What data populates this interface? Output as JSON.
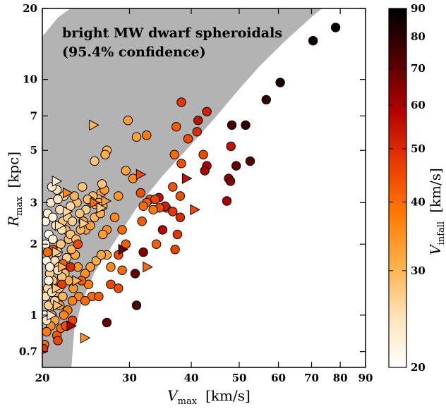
{
  "chart_data": {
    "type": "scatter",
    "title": "",
    "annotation_lines": [
      "bright MW dwarf spheroidals",
      "(95.4% confidence)"
    ],
    "xlabel": {
      "symbol": "V",
      "sub": "max",
      "unit": "[km/s]"
    },
    "ylabel": {
      "symbol": "R",
      "sub": "max",
      "unit": "[kpc]"
    },
    "colorbar_label": {
      "symbol": "V",
      "sub": "infall",
      "unit": "[km/s]"
    },
    "x_scale": "log",
    "y_scale": "log",
    "xlim": [
      20,
      90
    ],
    "ylim": [
      0.6,
      20
    ],
    "x_ticks": [
      20,
      30,
      40,
      50,
      60,
      70,
      80,
      90
    ],
    "y_ticks": [
      0.7,
      1,
      2,
      3,
      5,
      7,
      10,
      20
    ],
    "colorbar_range": [
      20,
      90
    ],
    "colorbar_ticks": [
      20,
      30,
      40,
      50,
      60,
      70,
      80,
      90
    ],
    "colormap": [
      "#ffffff",
      "#ffe3b8",
      "#ffb04a",
      "#ff7a00",
      "#ea3a00",
      "#b30000",
      "#520000",
      "#000000"
    ],
    "shaded_region": {
      "label": "bright MW dwarf spheroidals (95.4% confidence)",
      "color": "#b3b3b3",
      "upper_boundary": [
        [
          20,
          15.2
        ],
        [
          20.5,
          16.2
        ],
        [
          21.5,
          18.3
        ],
        [
          22.8,
          20
        ]
      ],
      "lower_boundary": [
        [
          22.9,
          0.6
        ],
        [
          23.2,
          0.86
        ],
        [
          24.0,
          1.12
        ],
        [
          25.5,
          1.52
        ],
        [
          28.0,
          2.05
        ],
        [
          31.0,
          2.85
        ],
        [
          35.0,
          3.9
        ],
        [
          40.0,
          5.3
        ],
        [
          45.0,
          7.0
        ],
        [
          50.0,
          9.1
        ],
        [
          55.0,
          11.4
        ],
        [
          62.0,
          14.6
        ],
        [
          70.0,
          18.4
        ],
        [
          73.5,
          20
        ]
      ]
    },
    "series": [
      {
        "marker": "circle",
        "points": [
          [
            78.3,
            16.6,
            90
          ],
          [
            70.5,
            14.6,
            88
          ],
          [
            60.5,
            9.7,
            85
          ],
          [
            56.7,
            8.2,
            80
          ],
          [
            51.5,
            6.4,
            78
          ],
          [
            48.3,
            6.4,
            75
          ],
          [
            48.1,
            5.2,
            55
          ],
          [
            52.6,
            4.5,
            72
          ],
          [
            49.3,
            4.3,
            70
          ],
          [
            47.6,
            3.8,
            62
          ],
          [
            48.0,
            3.7,
            65
          ],
          [
            47.2,
            3.05,
            60
          ],
          [
            43.0,
            4.3,
            58
          ],
          [
            42.6,
            4.1,
            60
          ],
          [
            42.3,
            4.8,
            45
          ],
          [
            43.0,
            7.3,
            52
          ],
          [
            41.3,
            6.7,
            55
          ],
          [
            41.1,
            6.0,
            50
          ],
          [
            38.2,
            8.0,
            48
          ],
          [
            37.3,
            6.3,
            42
          ],
          [
            39.4,
            5.6,
            45
          ],
          [
            37.0,
            4.8,
            40
          ],
          [
            38.2,
            4.4,
            44
          ],
          [
            36.7,
            3.5,
            43
          ],
          [
            38.0,
            3.2,
            44
          ],
          [
            35.6,
            2.85,
            50
          ],
          [
            36.7,
            2.75,
            48
          ],
          [
            38.0,
            2.6,
            50
          ],
          [
            35.4,
            2.9,
            52
          ],
          [
            34.4,
            3.15,
            55
          ],
          [
            35.0,
            2.3,
            58
          ],
          [
            37.5,
            2.2,
            48
          ],
          [
            37.1,
            1.9,
            46
          ],
          [
            34.0,
            2.0,
            42
          ],
          [
            34.5,
            2.85,
            44
          ],
          [
            33.0,
            3.1,
            45
          ],
          [
            33.8,
            3.1,
            46
          ],
          [
            32.5,
            3.0,
            42
          ],
          [
            32.0,
            2.9,
            40
          ],
          [
            33.5,
            2.8,
            38
          ],
          [
            31.8,
            2.5,
            42
          ],
          [
            31.6,
            3.3,
            44
          ],
          [
            32.0,
            1.85,
            65
          ],
          [
            30.8,
            1.5,
            70
          ],
          [
            31.0,
            1.1,
            75
          ],
          [
            29.0,
            2.3,
            40
          ],
          [
            29.5,
            2.0,
            42
          ],
          [
            28.5,
            1.8,
            45
          ],
          [
            29.0,
            1.55,
            40
          ],
          [
            27.5,
            1.6,
            36
          ],
          [
            27.0,
            2.3,
            35
          ],
          [
            28.0,
            2.6,
            36
          ],
          [
            28.5,
            3.2,
            34
          ],
          [
            29.5,
            4.1,
            32
          ],
          [
            30.5,
            3.8,
            35
          ],
          [
            29.8,
            6.7,
            33
          ],
          [
            31.0,
            5.7,
            32
          ],
          [
            32.5,
            5.8,
            38
          ],
          [
            27.0,
            5.0,
            30
          ],
          [
            26.8,
            4.8,
            31
          ],
          [
            26.3,
            3.3,
            32
          ],
          [
            26.7,
            3.4,
            33
          ],
          [
            26.0,
            3.1,
            30
          ],
          [
            25.3,
            3.2,
            29
          ],
          [
            25.0,
            3.05,
            30
          ],
          [
            25.6,
            2.95,
            31
          ],
          [
            26.4,
            3.6,
            28
          ],
          [
            26.0,
            3.0,
            30
          ],
          [
            24.7,
            3.1,
            29
          ],
          [
            24.5,
            2.8,
            27
          ],
          [
            23.8,
            2.7,
            28
          ],
          [
            23.5,
            3.0,
            29
          ],
          [
            23.2,
            3.2,
            30
          ],
          [
            24.2,
            2.5,
            31
          ],
          [
            24.5,
            2.3,
            32
          ],
          [
            25.0,
            2.4,
            33
          ],
          [
            25.5,
            2.6,
            30
          ],
          [
            26.2,
            2.7,
            31
          ],
          [
            26.5,
            2.2,
            33
          ],
          [
            27.0,
            1.8,
            32
          ],
          [
            25.7,
            1.7,
            31
          ],
          [
            26.3,
            1.8,
            32
          ],
          [
            25.0,
            1.6,
            33
          ],
          [
            24.4,
            1.5,
            35
          ],
          [
            24.8,
            1.35,
            38
          ],
          [
            25.2,
            1.2,
            40
          ],
          [
            24.0,
            1.4,
            42
          ],
          [
            23.6,
            1.6,
            34
          ],
          [
            23.3,
            1.8,
            32
          ],
          [
            22.9,
            1.9,
            30
          ],
          [
            22.6,
            2.1,
            29
          ],
          [
            22.3,
            2.3,
            30
          ],
          [
            22.0,
            2.5,
            28
          ],
          [
            21.8,
            2.0,
            28
          ],
          [
            21.5,
            1.85,
            26
          ],
          [
            21.2,
            1.7,
            25
          ],
          [
            21.6,
            1.6,
            27
          ],
          [
            22.2,
            1.5,
            29
          ],
          [
            22.6,
            1.4,
            31
          ],
          [
            23.1,
            1.3,
            34
          ],
          [
            23.7,
            1.2,
            36
          ],
          [
            23.0,
            1.15,
            37
          ],
          [
            22.5,
            1.05,
            38
          ],
          [
            22.1,
            1.0,
            36
          ],
          [
            21.7,
            1.1,
            33
          ],
          [
            21.3,
            1.25,
            30
          ],
          [
            21.0,
            1.4,
            28
          ],
          [
            20.7,
            1.5,
            27
          ],
          [
            20.5,
            1.3,
            26
          ],
          [
            20.3,
            1.2,
            25
          ],
          [
            20.6,
            1.1,
            27
          ],
          [
            20.9,
            1.0,
            29
          ],
          [
            21.2,
            0.95,
            32
          ],
          [
            20.8,
            0.9,
            35
          ],
          [
            20.4,
            0.85,
            38
          ],
          [
            20.2,
            0.75,
            40
          ],
          [
            21.4,
            0.82,
            42
          ],
          [
            21.8,
            0.88,
            40
          ],
          [
            22.3,
            0.9,
            44
          ],
          [
            23.0,
            0.95,
            46
          ],
          [
            27.0,
            0.93,
            70
          ],
          [
            26.0,
            1.2,
            42
          ],
          [
            27.5,
            1.35,
            45
          ],
          [
            28.5,
            1.3,
            44
          ],
          [
            24.4,
            1.15,
            40
          ],
          [
            20.3,
            2.5,
            22
          ],
          [
            20.5,
            2.7,
            23
          ],
          [
            20.8,
            3.0,
            24
          ],
          [
            21.0,
            2.6,
            22
          ],
          [
            20.6,
            2.2,
            21
          ],
          [
            20.3,
            2.0,
            22
          ],
          [
            21.3,
            2.4,
            24
          ],
          [
            21.7,
            2.8,
            25
          ],
          [
            22.1,
            3.2,
            26
          ],
          [
            21.5,
            3.1,
            24
          ],
          [
            21.4,
            3.4,
            25
          ],
          [
            20.9,
            3.5,
            23
          ],
          [
            20.4,
            1.7,
            21
          ],
          [
            20.7,
            1.6,
            22
          ],
          [
            21.0,
            2.1,
            23
          ],
          [
            21.9,
            2.3,
            25
          ],
          [
            22.5,
            2.6,
            27
          ],
          [
            22.8,
            2.9,
            26
          ],
          [
            22.8,
            2.2,
            28
          ],
          [
            22.4,
            1.75,
            27
          ],
          [
            21.9,
            1.45,
            28
          ],
          [
            21.6,
            1.3,
            27
          ],
          [
            21.2,
            1.15,
            26
          ],
          [
            20.9,
            1.25,
            24
          ],
          [
            21.5,
            1.55,
            25
          ],
          [
            20.2,
            1.0,
            21
          ],
          [
            20.4,
            0.95,
            24
          ],
          [
            20.6,
            1.4,
            22
          ],
          [
            22.0,
            1.2,
            30
          ],
          [
            23.4,
            2.1,
            29
          ],
          [
            23.9,
            2.3,
            30
          ],
          [
            23.0,
            2.5,
            27
          ],
          [
            25.5,
            4.5,
            28
          ],
          [
            26.5,
            2.9,
            30
          ],
          [
            24.1,
            3.5,
            28
          ],
          [
            22.0,
            1.65,
            41
          ],
          [
            21.0,
            1.9,
            44
          ],
          [
            20.5,
            1.85,
            40
          ],
          [
            23.6,
            2.0,
            45
          ],
          [
            21.5,
            0.78,
            45
          ],
          [
            20.1,
            0.72,
            48
          ],
          [
            21.9,
            1.35,
            47
          ],
          [
            22.8,
            1.6,
            50
          ]
        ]
      },
      {
        "marker": "triangle",
        "points": [
          [
            25.3,
            6.4,
            30
          ],
          [
            31.5,
            3.95,
            45
          ],
          [
            21.3,
            3.7,
            22
          ],
          [
            22.4,
            2.75,
            26
          ],
          [
            21.6,
            2.4,
            25
          ],
          [
            21.3,
            1.85,
            27
          ],
          [
            21.9,
            1.6,
            30
          ],
          [
            21.3,
            1.3,
            28
          ],
          [
            21.4,
            1.1,
            29
          ],
          [
            20.8,
            1.0,
            24
          ],
          [
            24.3,
            0.8,
            35
          ],
          [
            25.4,
            3.0,
            40
          ],
          [
            26.2,
            2.85,
            28
          ],
          [
            29.0,
            1.9,
            70
          ],
          [
            32.5,
            1.6,
            40
          ],
          [
            39.0,
            3.8,
            55
          ],
          [
            40.5,
            2.8,
            45
          ],
          [
            22.8,
            0.9,
            60
          ],
          [
            23.4,
            1.4,
            30
          ],
          [
            24.2,
            2.45,
            27
          ],
          [
            26.8,
            3.05,
            33
          ],
          [
            22.4,
            3.3,
            36
          ]
        ]
      }
    ]
  }
}
